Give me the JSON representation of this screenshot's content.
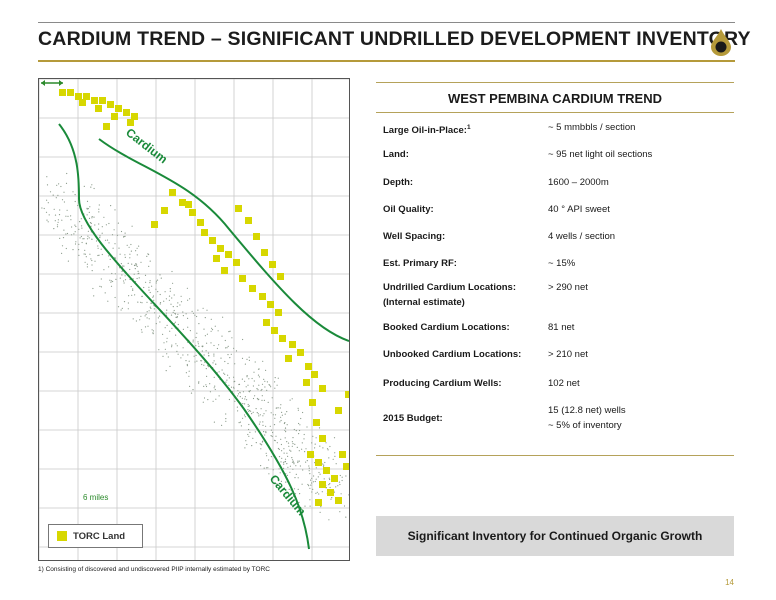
{
  "header": {
    "title": "CARDIUM TREND – SIGNIFICANT UNDRILLED DEVELOPMENT INVENTORY",
    "accent_color": "#b59a3a"
  },
  "map": {
    "trend_label_top": "Cardium",
    "trend_label_bottom": "Cardium",
    "scale_label": "6 miles",
    "legend_label": "TORC Land",
    "land_color": "#d7d700",
    "trend_line_color": "#1a8a3a"
  },
  "panel": {
    "title": "WEST PEMBINA CARDIUM TREND",
    "rows": [
      {
        "label": "Large Oil-in-Place:",
        "label_sup": "1",
        "value": "~ 5 mmbbls / section"
      },
      {
        "label": "Land:",
        "value": "~ 95 net light oil sections"
      },
      {
        "label": "Depth:",
        "value": "1600 – 2000m"
      },
      {
        "label": "Oil Quality:",
        "value": "40 ° API  sweet"
      },
      {
        "label": "Well Spacing:",
        "value": "4 wells / section"
      },
      {
        "label": "Est. Primary RF:",
        "value": "~ 15%"
      },
      {
        "label": "Undrilled Cardium Locations:",
        "label_line2": "(Internal estimate)",
        "value": "> 290 net"
      },
      {
        "label": "Booked Cardium Locations:",
        "value": "81 net"
      },
      {
        "label": "Unbooked Cardium Locations:",
        "value": "> 210 net"
      },
      {
        "label": "Producing Cardium Wells:",
        "value": "102 net"
      },
      {
        "label": "2015 Budget:",
        "value": "15 (12.8 net) wells",
        "value_line2": "~ 5% of inventory"
      }
    ]
  },
  "banner": {
    "text": "Significant Inventory for Continued Organic Growth"
  },
  "footnote": "1) Consisting of discovered and undiscovered PIIP internally estimated by TORC",
  "page_number": "14"
}
